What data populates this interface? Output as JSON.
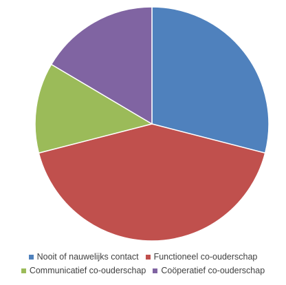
{
  "chart_data": {
    "type": "pie",
    "title": "",
    "slices": [
      {
        "label": "Nooit of nauwelijks contact",
        "value": 29.0,
        "color": "#4F81BD"
      },
      {
        "label": "Functioneel co-ouderschap",
        "value": 42.0,
        "color": "#C0504D"
      },
      {
        "label": "Communicatief co-ouderschap",
        "value": 12.5,
        "color": "#9BBB59"
      },
      {
        "label": "Coöperatief co-ouderschap",
        "value": 16.5,
        "color": "#8064A2"
      }
    ],
    "legend_position": "bottom",
    "start_angle": "12 o'clock",
    "direction": "clockwise"
  }
}
